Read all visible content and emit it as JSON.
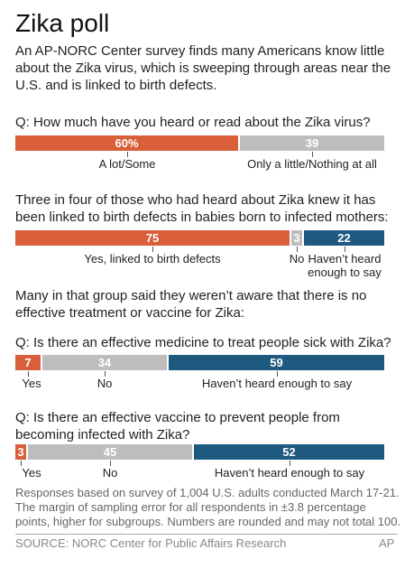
{
  "header": {
    "title": "Zika poll",
    "subtitle": "An AP-NORC Center survey finds many Americans know little about the Zika virus, which is sweeping through areas near the U.S. and is linked to birth defects."
  },
  "colors": {
    "orange": "#d95f3b",
    "gray": "#bdbdbd",
    "blue": "#1e5a80"
  },
  "chart_data": [
    {
      "type": "bar",
      "orientation": "horizontal-stacked",
      "title": "Q: How much have you heard or read about the Zika virus?",
      "segments": [
        {
          "label": "A lot/Some",
          "value": 60,
          "value_label": "60%",
          "color": "orange"
        },
        {
          "label": "Only a little/Nothing at all",
          "value": 39,
          "value_label": "39",
          "color": "gray"
        }
      ]
    },
    {
      "type": "bar",
      "orientation": "horizontal-stacked",
      "title": "Three in four of those who had heard about Zika knew it has been linked to birth defects in babies born to infected mothers:",
      "segments": [
        {
          "label": "Yes, linked to birth defects",
          "value": 75,
          "value_label": "75",
          "color": "orange"
        },
        {
          "label": "No",
          "value": 3,
          "value_label": "3",
          "color": "gray"
        },
        {
          "label": "Haven’t heard enough to say",
          "value": 22,
          "value_label": "22",
          "color": "blue"
        }
      ]
    },
    {
      "type": "bar",
      "orientation": "horizontal-stacked",
      "title": "Q: Is there an effective medicine to treat people sick with Zika?",
      "segments": [
        {
          "label": "Yes",
          "value": 7,
          "value_label": "7",
          "color": "orange"
        },
        {
          "label": "No",
          "value": 34,
          "value_label": "34",
          "color": "gray"
        },
        {
          "label": "Haven’t heard enough to say",
          "value": 59,
          "value_label": "59",
          "color": "blue"
        }
      ]
    },
    {
      "type": "bar",
      "orientation": "horizontal-stacked",
      "title": "Q: Is there an effective vaccine to prevent people from becoming infected with Zika?",
      "segments": [
        {
          "label": "Yes",
          "value": 3,
          "value_label": "3",
          "color": "orange"
        },
        {
          "label": "No",
          "value": 45,
          "value_label": "45",
          "color": "gray"
        },
        {
          "label": "Haven’t heard enough to say",
          "value": 52,
          "value_label": "52",
          "color": "blue"
        }
      ]
    }
  ],
  "intro": "Many in that group said they weren’t aware that there is no effective treatment or vaccine for Zika:",
  "footnote": "Responses based on survey of 1,004 U.S. adults conducted March 17-21. The margin of sampling error for all respondents in ±3.8 percentage points, higher for subgroups. Numbers are rounded and may not total 100.",
  "source": "SOURCE: NORC Center for Public Affairs Research",
  "credit": "AP"
}
